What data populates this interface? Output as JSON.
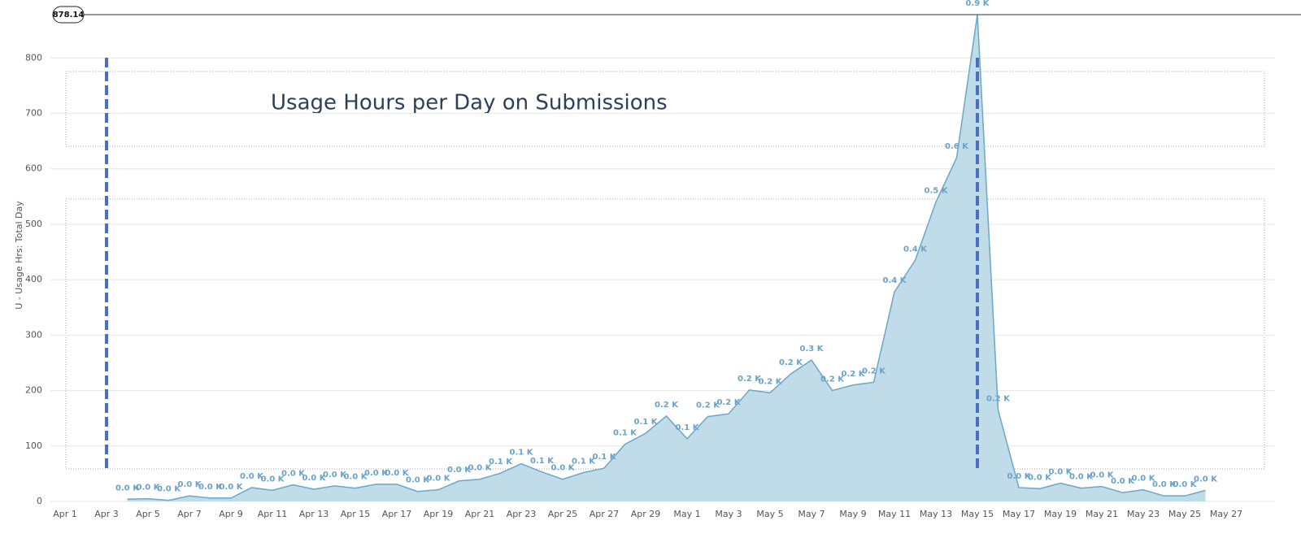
{
  "chart_data": {
    "type": "area",
    "title": "Usage Hours per Day on Submissions",
    "y_label": "U - Usage Hrs: Total Day",
    "peak_line": 878.14,
    "marker_dates": [
      "Apr 3",
      "May 15"
    ],
    "categories": [
      "Apr 1",
      null,
      "Apr 3",
      null,
      "Apr 5",
      null,
      "Apr 7",
      null,
      "Apr 9",
      null,
      "Apr 11",
      null,
      "Apr 13",
      null,
      "Apr 15",
      null,
      "Apr 17",
      null,
      "Apr 19",
      null,
      "Apr 21",
      null,
      "Apr 23",
      null,
      "Apr 25",
      null,
      "Apr 27",
      null,
      "Apr 29",
      null,
      "May 1",
      null,
      "May 3",
      null,
      "May 5",
      null,
      "May 7",
      null,
      "May 9",
      null,
      "May 11",
      null,
      "May 13",
      null,
      "May 15",
      null,
      "May 17",
      null,
      "May 19",
      null,
      "May 21",
      null,
      "May 23",
      null,
      "May 25",
      null,
      "May 27",
      null
    ],
    "values": [
      null,
      null,
      null,
      4,
      5,
      2,
      10,
      6,
      6,
      25,
      20,
      30,
      22,
      28,
      24,
      31,
      31,
      18,
      21,
      37,
      40,
      51,
      68,
      53,
      40,
      52,
      60,
      103,
      123,
      154,
      113,
      153,
      158,
      201,
      196,
      230,
      255,
      200,
      210,
      215,
      378,
      435,
      540,
      620,
      878.14,
      165,
      25,
      23,
      33,
      24,
      27,
      16,
      21,
      10,
      10,
      20,
      null,
      null
    ],
    "value_labels": [
      null,
      null,
      null,
      "0.0 K",
      "0.0 K",
      "0.0 K",
      "0.0 K",
      "0.0 K",
      "0.0 K",
      "0.0 K",
      "0.0 K",
      "0.0 K",
      "0.0 K",
      "0.0 K",
      "0.0 K",
      "0.0 K",
      "0.0 K",
      "0.0 K",
      "0.0 K",
      "0.0 K",
      "0.0 K",
      "0.1 K",
      "0.1 K",
      "0.1 K",
      "0.0 K",
      "0.1 K",
      "0.1 K",
      "0.1 K",
      "0.1 K",
      "0.2 K",
      "0.1 K",
      "0.2 K",
      "0.2 K",
      "0.2 K",
      "0.2 K",
      "0.2 K",
      "0.3 K",
      "0.2 K",
      "0.2 K",
      "0.2 K",
      "0.4 K",
      "0.4 K",
      "0.5 K",
      "0.6 K",
      "0.9 K",
      "0.2 K",
      "0.0 K",
      "0.0 K",
      "0.0 K",
      "0.0 K",
      "0.0 K",
      "0.0 K",
      "0.0 K",
      "0.0 K",
      "0.0 K",
      "0.0 K",
      null,
      null
    ],
    "color": "#bfdce8",
    "line_color": "#6aa7c8",
    "marker_color": "#4a6fc0",
    "ylim": [
      0,
      878.14
    ],
    "yticks": [
      0,
      100,
      200,
      300,
      400,
      500,
      600,
      700,
      800
    ],
    "grid": true
  }
}
